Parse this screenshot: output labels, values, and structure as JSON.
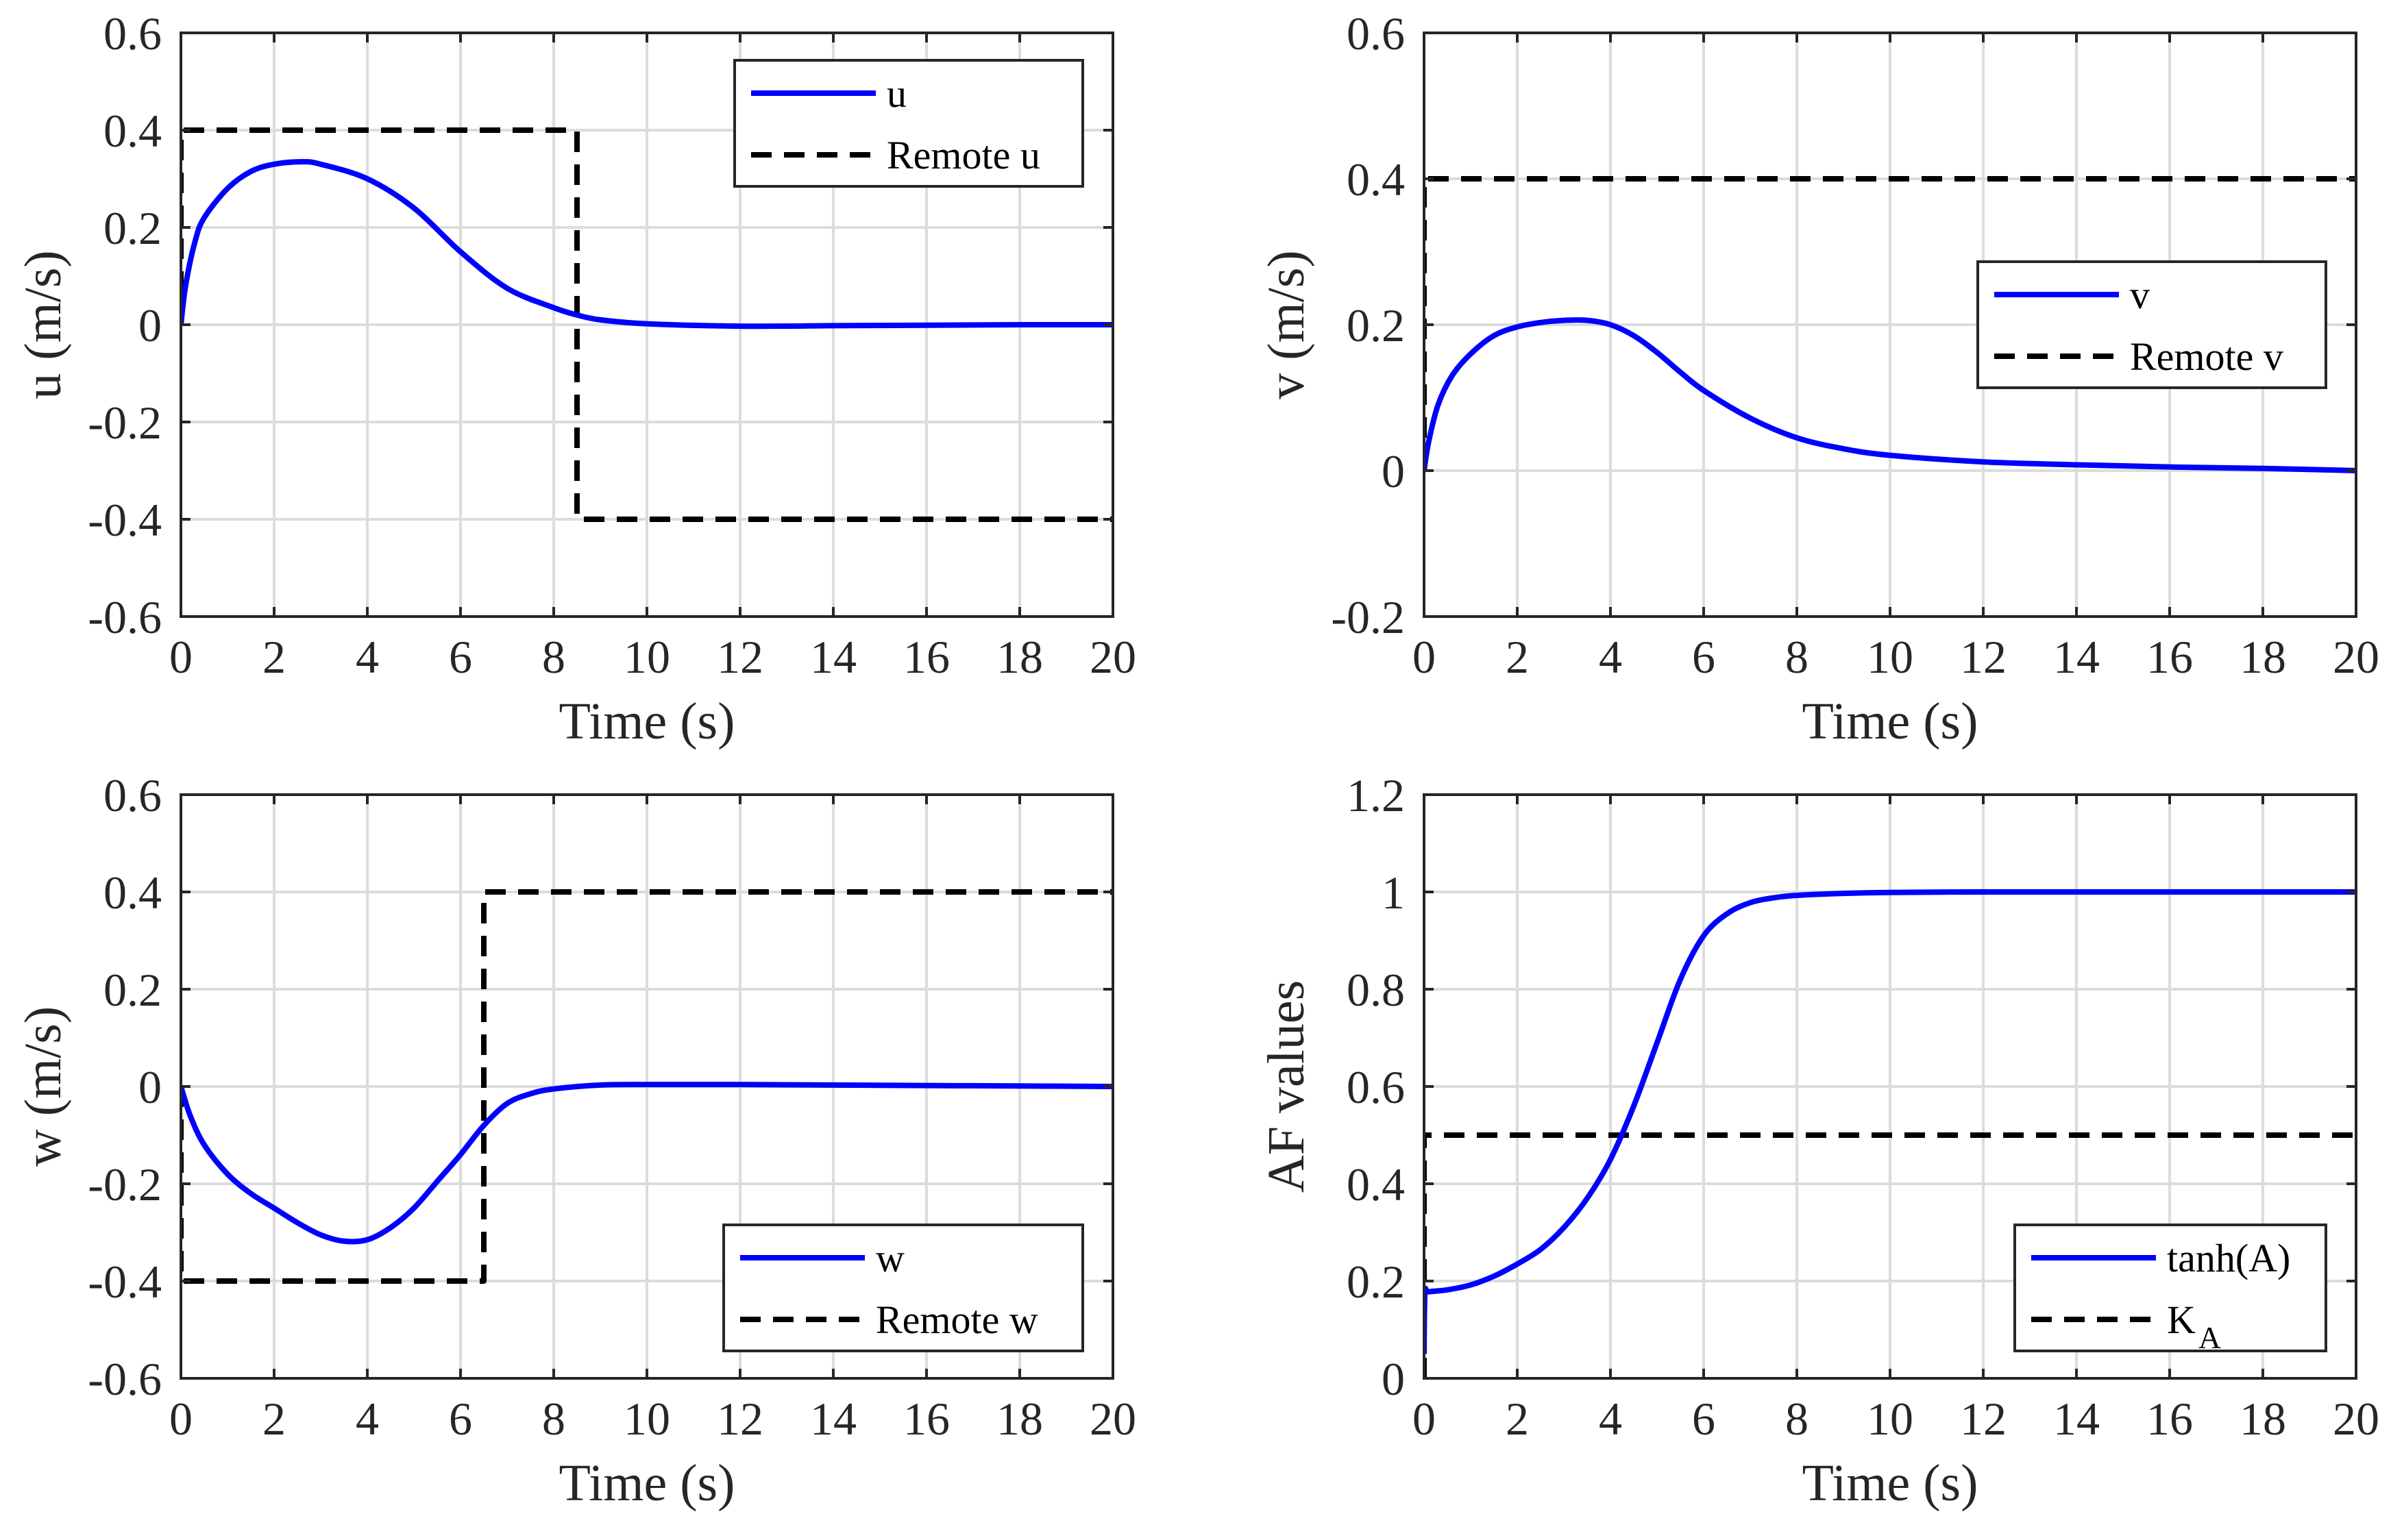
{
  "chart_data": [
    {
      "type": "line",
      "id": "u",
      "xlabel": "Time (s)",
      "ylabel": "u (m/s)",
      "xlim": [
        0,
        20
      ],
      "ylim": [
        -0.6,
        0.6
      ],
      "xticks": [
        "0",
        "2",
        "4",
        "6",
        "8",
        "10",
        "12",
        "14",
        "16",
        "18",
        "20"
      ],
      "yticks": [
        "-0.6",
        "-0.4",
        "-0.2",
        "0",
        "0.2",
        "0.4",
        "0.6"
      ],
      "legend_position": "top-right",
      "series": [
        {
          "name": "u",
          "style": "solid",
          "color": "#0000ff",
          "x": [
            0,
            0.1,
            0.3,
            0.5,
            1,
            1.5,
            2,
            2.6,
            3,
            4,
            5,
            6,
            7,
            8,
            8.5,
            9,
            10,
            12,
            14,
            16,
            18,
            20
          ],
          "y": [
            0,
            0.08,
            0.17,
            0.22,
            0.28,
            0.315,
            0.33,
            0.335,
            0.33,
            0.3,
            0.24,
            0.15,
            0.075,
            0.035,
            0.02,
            0.01,
            0.002,
            -0.003,
            -0.002,
            -0.001,
            0,
            0
          ]
        },
        {
          "name": "Remote u",
          "style": "dashed",
          "color": "#000000",
          "x": [
            0,
            0,
            8.5,
            8.5,
            20
          ],
          "y": [
            0,
            0.4,
            0.4,
            -0.4,
            -0.4
          ]
        }
      ]
    },
    {
      "type": "line",
      "id": "v",
      "xlabel": "Time (s)",
      "ylabel": "v (m/s)",
      "xlim": [
        0,
        20
      ],
      "ylim": [
        -0.2,
        0.6
      ],
      "xticks": [
        "0",
        "2",
        "4",
        "6",
        "8",
        "10",
        "12",
        "14",
        "16",
        "18",
        "20"
      ],
      "yticks": [
        "-0.2",
        "0",
        "0.2",
        "0.4",
        "0.6"
      ],
      "legend_position": "right",
      "series": [
        {
          "name": "v",
          "style": "solid",
          "color": "#0000ff",
          "x": [
            0,
            0.1,
            0.3,
            0.6,
            1,
            1.5,
            2,
            2.5,
            3,
            3.5,
            4,
            4.5,
            5,
            5.5,
            6,
            7,
            8,
            9,
            10,
            12,
            14,
            16,
            18,
            20
          ],
          "y": [
            0,
            0.04,
            0.09,
            0.13,
            0.16,
            0.185,
            0.197,
            0.203,
            0.206,
            0.206,
            0.2,
            0.185,
            0.162,
            0.135,
            0.11,
            0.072,
            0.045,
            0.03,
            0.021,
            0.012,
            0.008,
            0.005,
            0.003,
            0
          ]
        },
        {
          "name": "Remote v",
          "style": "dashed",
          "color": "#000000",
          "x": [
            0,
            0,
            20
          ],
          "y": [
            0,
            0.4,
            0.4
          ]
        }
      ]
    },
    {
      "type": "line",
      "id": "w",
      "xlabel": "Time (s)",
      "ylabel": "w (m/s)",
      "xlim": [
        0,
        20
      ],
      "ylim": [
        -0.6,
        0.6
      ],
      "xticks": [
        "0",
        "2",
        "4",
        "6",
        "8",
        "10",
        "12",
        "14",
        "16",
        "18",
        "20"
      ],
      "yticks": [
        "-0.6",
        "-0.4",
        "-0.2",
        "0",
        "0.2",
        "0.4",
        "0.6"
      ],
      "legend_position": "bottom-right",
      "series": [
        {
          "name": "w",
          "style": "solid",
          "color": "#0000ff",
          "x": [
            0,
            0.2,
            0.5,
            1,
            1.5,
            2,
            2.5,
            3,
            3.5,
            4,
            4.5,
            5,
            5.5,
            6,
            6.5,
            7,
            7.5,
            8,
            9,
            10,
            12,
            14,
            16,
            18,
            20
          ],
          "y": [
            0,
            -0.06,
            -0.12,
            -0.18,
            -0.22,
            -0.25,
            -0.28,
            -0.305,
            -0.318,
            -0.315,
            -0.29,
            -0.25,
            -0.195,
            -0.14,
            -0.08,
            -0.035,
            -0.015,
            -0.005,
            0.003,
            0.004,
            0.004,
            0.003,
            0.002,
            0.001,
            0
          ]
        },
        {
          "name": "Remote w",
          "style": "dashed",
          "color": "#000000",
          "x": [
            0,
            0,
            6.5,
            6.5,
            20
          ],
          "y": [
            0,
            -0.4,
            -0.4,
            0.4,
            0.4
          ]
        }
      ]
    },
    {
      "type": "line",
      "id": "af",
      "xlabel": "Time (s)",
      "ylabel": "AF values",
      "xlim": [
        0,
        20
      ],
      "ylim": [
        0,
        1.2
      ],
      "xticks": [
        "0",
        "2",
        "4",
        "6",
        "8",
        "10",
        "12",
        "14",
        "16",
        "18",
        "20"
      ],
      "yticks": [
        "0",
        "0.2",
        "0.4",
        "0.6",
        "0.8",
        "1",
        "1.2"
      ],
      "legend_position": "bottom-right",
      "series": [
        {
          "name": "tanh(A)",
          "style": "solid",
          "color": "#0000ff",
          "x": [
            0,
            0.02,
            0.1,
            0.5,
            1,
            1.5,
            2,
            2.5,
            3,
            3.5,
            4,
            4.5,
            5,
            5.5,
            6,
            6.5,
            7,
            7.5,
            8,
            9,
            10,
            12,
            14,
            16,
            18,
            20
          ],
          "y": [
            0.05,
            0.175,
            0.178,
            0.182,
            0.192,
            0.21,
            0.235,
            0.265,
            0.31,
            0.37,
            0.45,
            0.56,
            0.69,
            0.82,
            0.91,
            0.955,
            0.978,
            0.988,
            0.993,
            0.997,
            0.999,
            1.0,
            1.0,
            1.0,
            1.0,
            1.0
          ]
        },
        {
          "name": "K_A",
          "legend_main": "K",
          "legend_sub": "A",
          "style": "dashed",
          "color": "#000000",
          "x": [
            0,
            0,
            20
          ],
          "y": [
            0,
            0.5,
            0.5
          ]
        }
      ]
    }
  ]
}
